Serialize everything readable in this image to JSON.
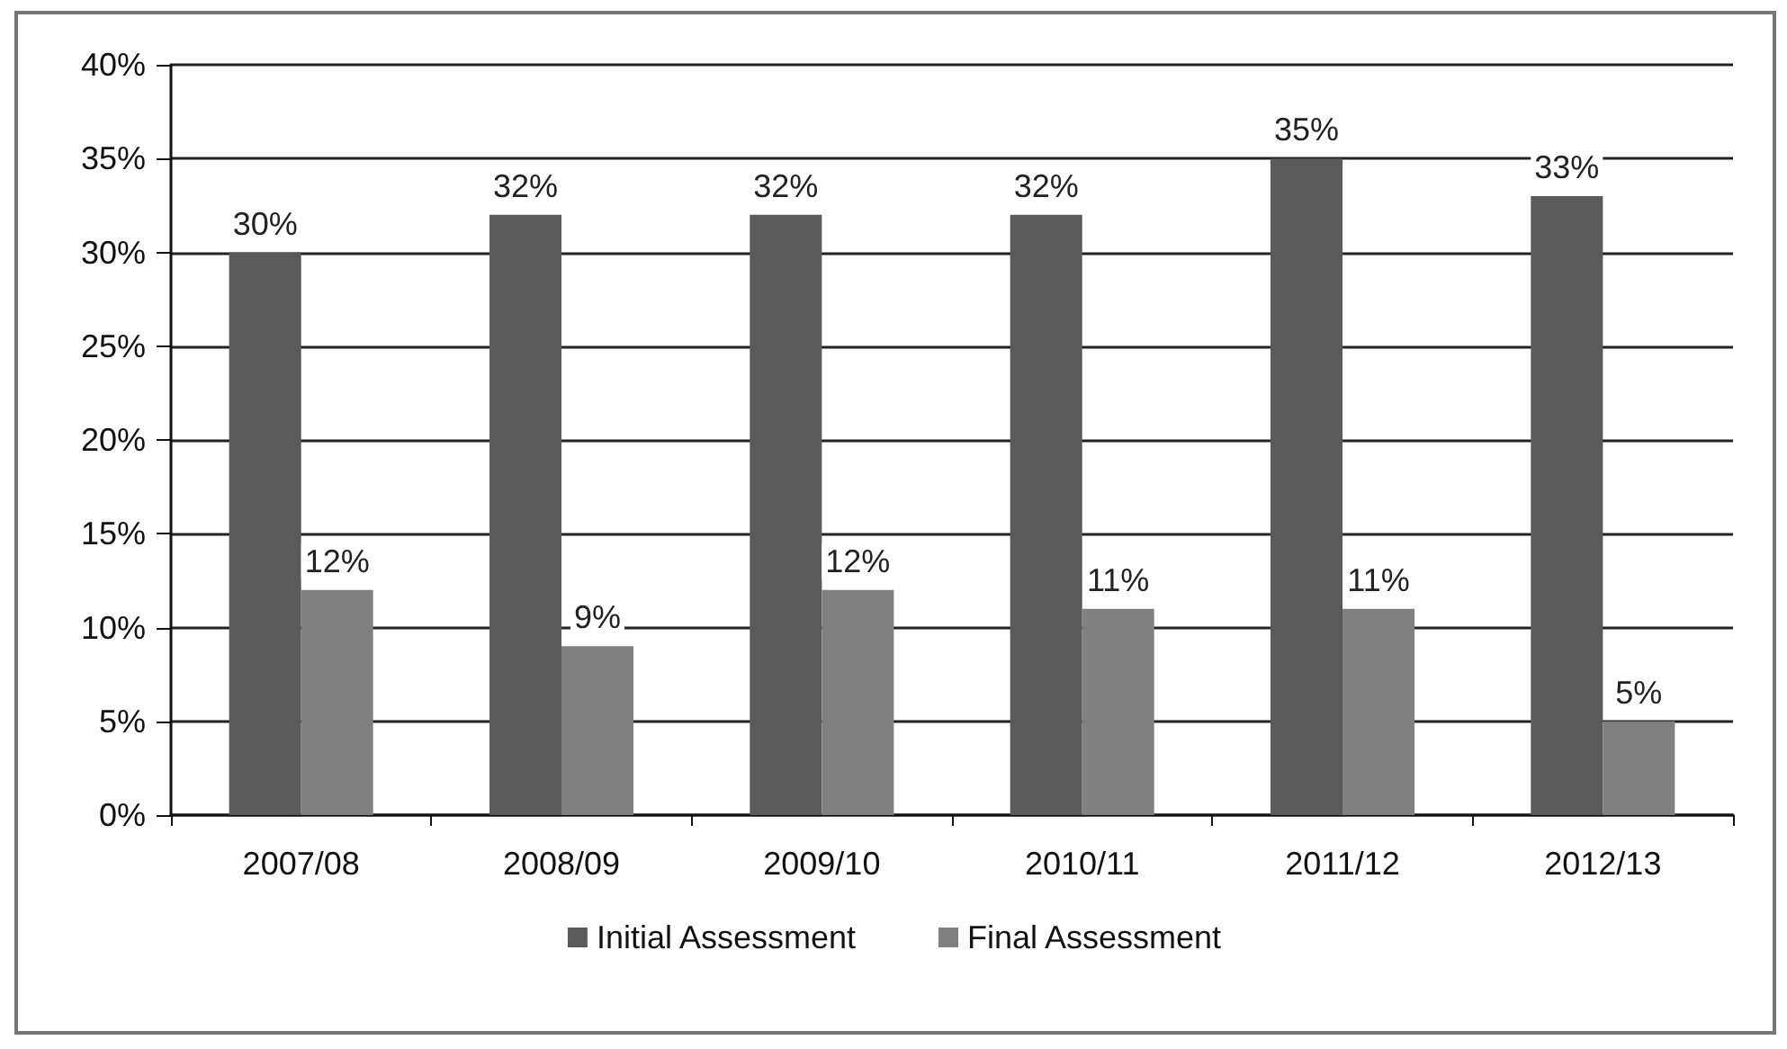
{
  "chart_data": {
    "type": "bar",
    "categories": [
      "2007/08",
      "2008/09",
      "2009/10",
      "2010/11",
      "2011/12",
      "2012/13"
    ],
    "series": [
      {
        "name": "Initial Assessment",
        "color": "#5a5a5a",
        "values": [
          30,
          32,
          32,
          32,
          35,
          33
        ],
        "value_labels": [
          "30%",
          "32%",
          "32%",
          "32%",
          "35%",
          "33%"
        ]
      },
      {
        "name": "Final Assessment",
        "color": "#808080",
        "values": [
          12,
          9,
          12,
          11,
          11,
          5
        ],
        "value_labels": [
          "12%",
          "9%",
          "12%",
          "11%",
          "11%",
          "5%"
        ]
      }
    ],
    "ylim": [
      0,
      40
    ],
    "yticks": [
      {
        "value": 0,
        "label": "0%"
      },
      {
        "value": 5,
        "label": "5%"
      },
      {
        "value": 10,
        "label": "10%"
      },
      {
        "value": 15,
        "label": "15%"
      },
      {
        "value": 20,
        "label": "20%"
      },
      {
        "value": 25,
        "label": "25%"
      },
      {
        "value": 30,
        "label": "30%"
      },
      {
        "value": 35,
        "label": "35%"
      },
      {
        "value": 40,
        "label": "40%"
      }
    ],
    "grid": "y",
    "legend": "bottom"
  }
}
